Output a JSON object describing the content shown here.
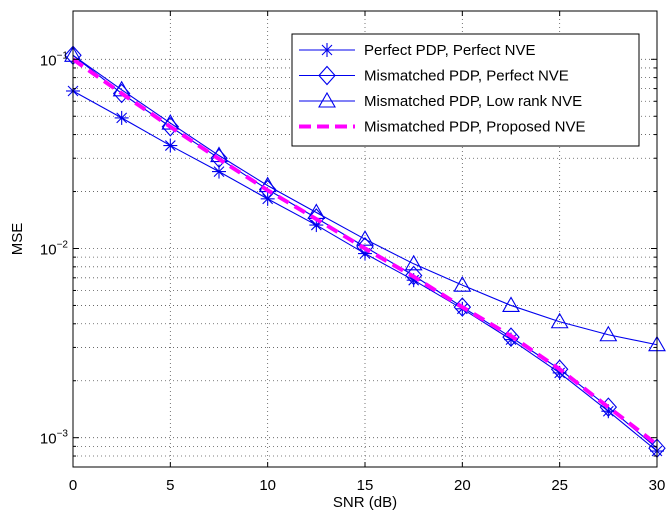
{
  "chart_data": {
    "type": "line",
    "xlabel": "SNR (dB)",
    "ylabel": "MSE",
    "yscale": "log",
    "xlim": [
      0,
      30
    ],
    "ylim": [
      0.0007,
      0.18
    ],
    "grid": true,
    "legend_position": "top-right",
    "x_ticks": [
      "0",
      "5",
      "10",
      "15",
      "20",
      "25",
      "30"
    ],
    "y_ticks": [
      {
        "base": "10",
        "exp": "−1",
        "value": 0.1
      },
      {
        "base": "10",
        "exp": "−2",
        "value": 0.01
      },
      {
        "base": "10",
        "exp": "−3",
        "value": 0.001
      }
    ],
    "x": [
      0,
      2.5,
      5,
      7.5,
      10,
      12.5,
      15,
      17.5,
      20,
      22.5,
      25,
      27.5,
      30
    ],
    "series": [
      {
        "name": "Perfect PDP, Perfect NVE",
        "marker": "asterisk",
        "color": "#0000ee",
        "dashed": false,
        "values": [
          0.068,
          0.049,
          0.035,
          0.0255,
          0.0183,
          0.0133,
          0.0094,
          0.0068,
          0.0048,
          0.0033,
          0.0022,
          0.00138,
          0.00085
        ]
      },
      {
        "name": "Mismatched PDP, Perfect NVE",
        "marker": "diamond",
        "color": "#0000ee",
        "dashed": false,
        "values": [
          0.105,
          0.066,
          0.044,
          0.03,
          0.0205,
          0.0145,
          0.0102,
          0.0072,
          0.0049,
          0.0034,
          0.0023,
          0.00145,
          0.00088
        ]
      },
      {
        "name": "Mismatched PDP, Low rank NVE",
        "marker": "triangle",
        "color": "#0000ee",
        "dashed": false,
        "values": [
          0.105,
          0.069,
          0.046,
          0.031,
          0.0215,
          0.0155,
          0.0112,
          0.0083,
          0.0064,
          0.005,
          0.0041,
          0.0035,
          0.0031
        ]
      },
      {
        "name": "Mismatched PDP, Proposed NVE",
        "marker": "none",
        "color": "#ff00ff",
        "dashed": true,
        "values": [
          0.1,
          0.066,
          0.044,
          0.0297,
          0.0203,
          0.0143,
          0.01,
          0.0071,
          0.0049,
          0.00345,
          0.0023,
          0.00145,
          0.00092
        ]
      }
    ]
  }
}
